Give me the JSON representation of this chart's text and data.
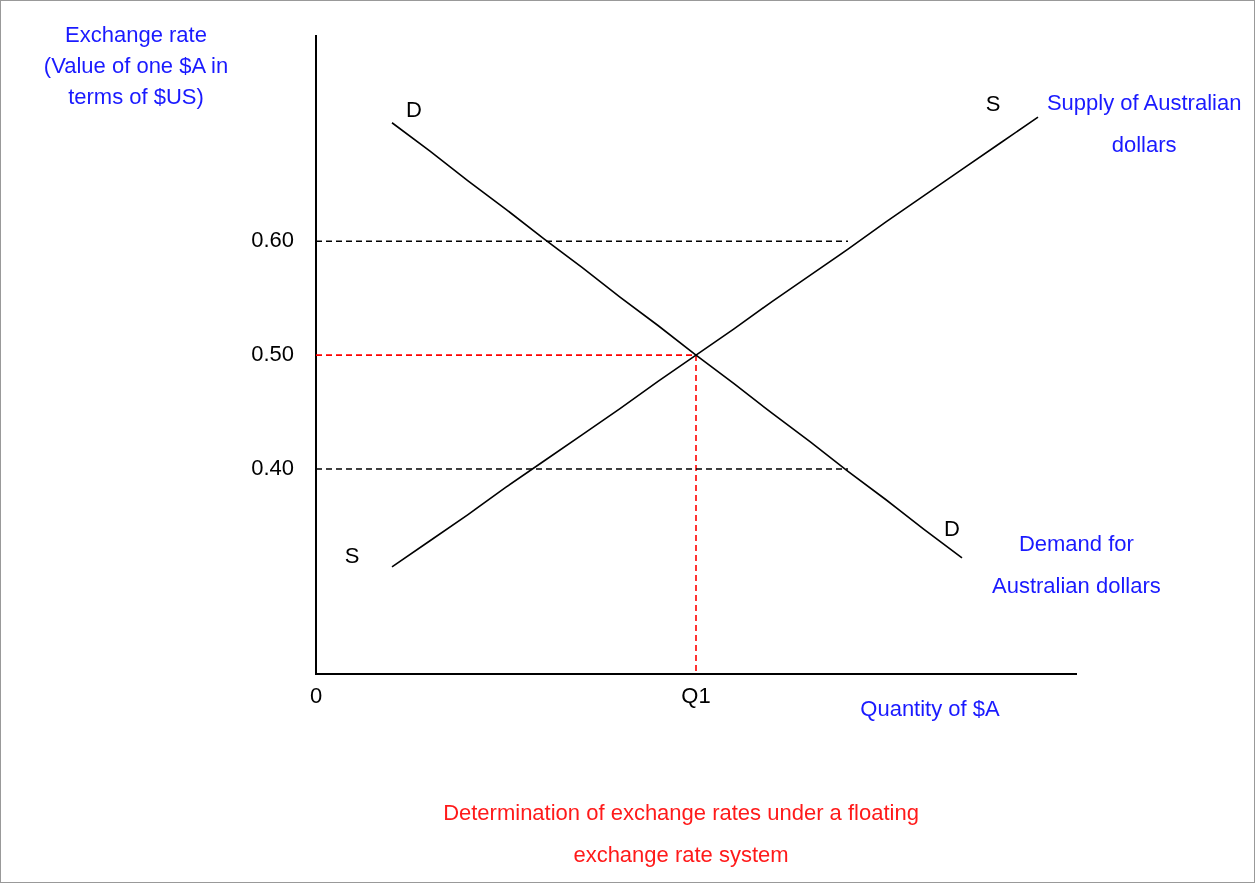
{
  "chart_data": {
    "type": "line",
    "title": "Determination of exchange rates under a floating exchange rate system",
    "xlabel": "Quantity of $A",
    "ylabel": "Exchange rate (Value of one $A in terms of $US)",
    "categories": [
      "0",
      null,
      null,
      null,
      null,
      null,
      null,
      null,
      null,
      null,
      "Q1",
      null,
      null,
      null,
      null,
      null,
      null,
      null,
      null,
      null,
      null
    ],
    "ylim": [
      0.22,
      0.78
    ],
    "yticks": [
      {
        "value": 0.4,
        "label": "0.40"
      },
      {
        "value": 0.5,
        "label": "0.50"
      },
      {
        "value": 0.6,
        "label": "0.60"
      }
    ],
    "grid": false,
    "legend": false,
    "marker": "none",
    "series": [
      {
        "name": "Supply of Australian dollars",
        "color": "#000000",
        "values": [
          null,
          null,
          0.314,
          0.337,
          0.36,
          0.384,
          0.407,
          0.43,
          0.453,
          0.477,
          0.5,
          0.523,
          0.547,
          0.57,
          0.593,
          0.617,
          0.64,
          0.663,
          0.686,
          0.709,
          null
        ]
      },
      {
        "name": "Demand for Australian dollars",
        "color": "#000000",
        "values": [
          null,
          null,
          0.704,
          0.679,
          0.653,
          0.628,
          0.602,
          0.577,
          0.551,
          0.526,
          0.5,
          0.475,
          0.449,
          0.424,
          0.398,
          0.373,
          0.347,
          0.322,
          null,
          null,
          null
        ]
      },
      {
        "color": "#000000",
        "line_style": "dashed",
        "values": [
          0.6,
          0.6,
          0.6,
          0.6,
          0.6,
          0.6,
          0.6,
          0.6,
          0.6,
          0.6,
          0.6,
          0.6,
          0.6,
          0.6,
          0.6,
          null,
          null,
          null,
          null,
          null,
          null
        ]
      },
      {
        "color": "#000000",
        "line_style": "dashed",
        "values": [
          0.4,
          0.4,
          0.4,
          0.4,
          0.4,
          0.4,
          0.4,
          0.4,
          0.4,
          0.4,
          0.4,
          0.4,
          0.4,
          0.4,
          0.4,
          null,
          null,
          null,
          null,
          null,
          null
        ]
      },
      {
        "color": "#ff0000",
        "line_style": "dashed",
        "values": [
          0.5,
          0.5,
          0.5,
          0.5,
          0.5,
          0.5,
          0.5,
          0.5,
          0.5,
          0.5,
          0.5,
          null,
          null,
          null,
          null,
          null,
          null,
          null,
          null,
          null,
          null
        ]
      },
      {
        "color": "#ff0000",
        "line_style": "dashed",
        "x": [
          "Q1",
          "Q1"
        ],
        "values": [
          0.5,
          0.22
        ]
      }
    ],
    "annotations": [
      "S",
      "D",
      "S",
      "D"
    ]
  }
}
